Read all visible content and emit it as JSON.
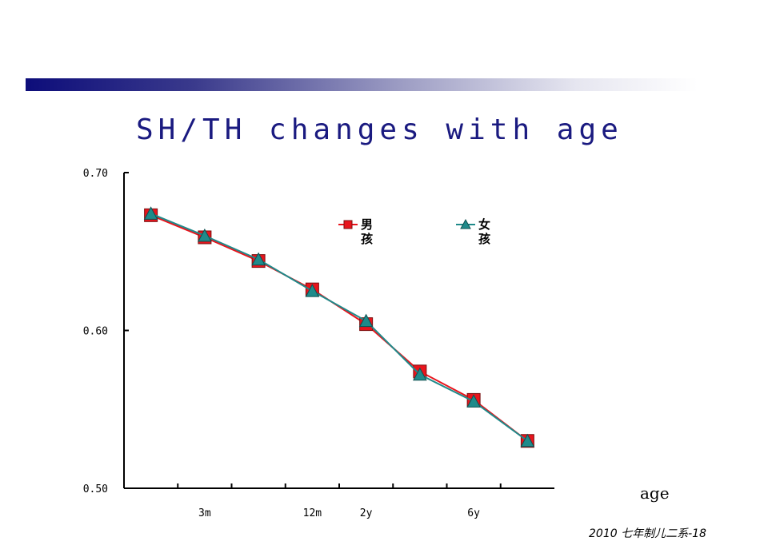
{
  "slide": {
    "title": "SH/TH changes with age",
    "footer": "2010 七年制儿二系-18"
  },
  "colors": {
    "accent_bar_start": "#0d0d7a",
    "title": "#1a1a80",
    "series_boy": "#e8141c",
    "series_girl": "#1f8a8a"
  },
  "chart_data": {
    "type": "line",
    "title": "",
    "xlabel": "age",
    "ylabel": "",
    "ylim": [
      0.5,
      0.7
    ],
    "yticks": [
      0.5,
      0.6,
      0.7
    ],
    "ytick_labels": [
      "0.50",
      "0.60",
      "0.70"
    ],
    "categories": [
      "",
      "3m",
      "",
      "12m",
      "2y",
      "",
      "6y",
      ""
    ],
    "xtick_labels": [
      {
        "index": 1,
        "label": "3m"
      },
      {
        "index": 3,
        "label": "12m"
      },
      {
        "index": 4,
        "label": "2y"
      },
      {
        "index": 6,
        "label": "6y"
      }
    ],
    "legend_position": "top-right",
    "grid": false,
    "series": [
      {
        "name": "男孩",
        "name_lines": [
          "男",
          "孩"
        ],
        "marker": "square",
        "color": "#e8141c",
        "values": [
          0.673,
          0.659,
          0.644,
          0.626,
          0.604,
          0.574,
          0.556,
          0.53
        ]
      },
      {
        "name": "女孩",
        "name_lines": [
          "女",
          "孩"
        ],
        "marker": "triangle",
        "color": "#1f8a8a",
        "values": [
          0.674,
          0.66,
          0.645,
          0.625,
          0.606,
          0.572,
          0.555,
          0.53
        ]
      }
    ]
  }
}
